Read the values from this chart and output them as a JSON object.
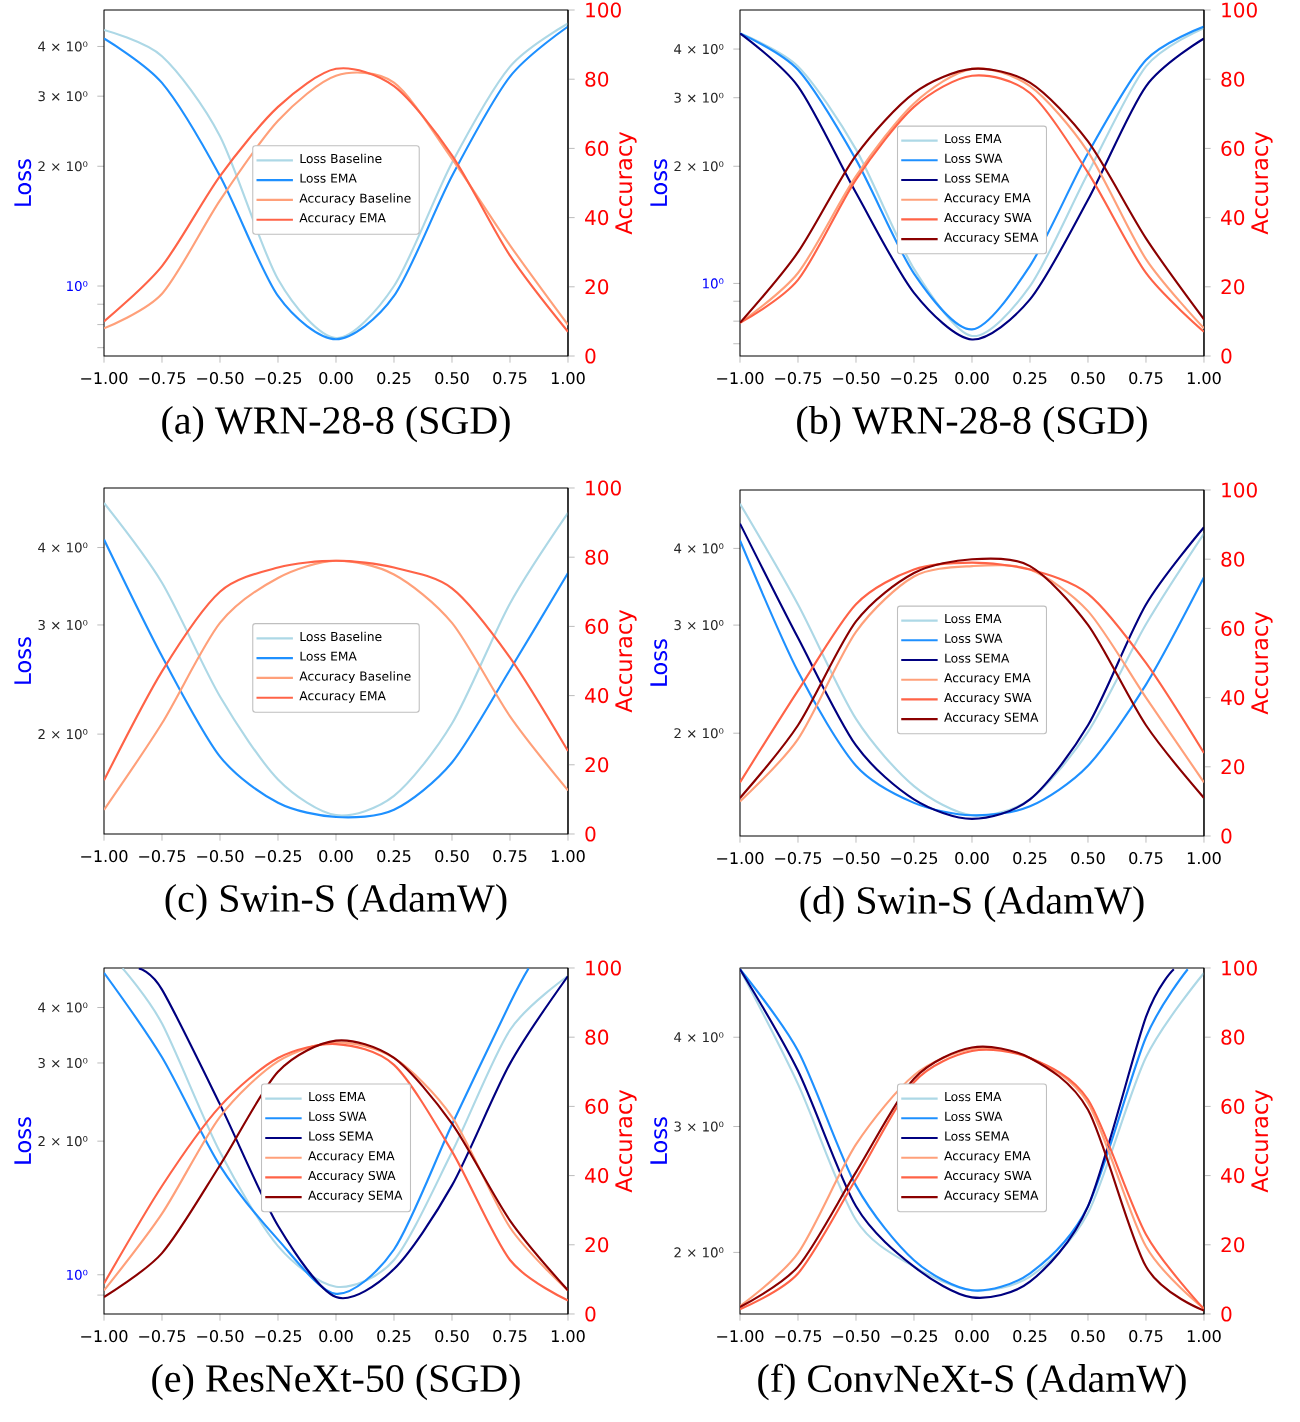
{
  "chart_data": [
    {
      "type": "line",
      "title": "(a) WRN-28-8 (SGD)",
      "ylabel": "Loss",
      "y2label": "Accuracy",
      "log": "y",
      "legend": "center",
      "x": [
        -1,
        -0.75,
        -0.5,
        -0.25,
        0,
        0.25,
        0.5,
        0.75,
        1
      ],
      "xlim": [
        -1,
        1
      ],
      "xticks": [
        {
          "value": -1,
          "label": "−1.00"
        },
        {
          "value": -0.75,
          "label": "−0.75"
        },
        {
          "value": -0.5,
          "label": "−0.50"
        },
        {
          "value": -0.25,
          "label": "−0.25"
        },
        {
          "value": 0,
          "label": "0.00"
        },
        {
          "value": 0.25,
          "label": "0.25"
        },
        {
          "value": 0.5,
          "label": "0.50"
        },
        {
          "value": 0.75,
          "label": "0.75"
        },
        {
          "value": 1,
          "label": "1.00"
        }
      ],
      "ylim": [
        0.667,
        4.94
      ],
      "yticks": [
        {
          "value": 0.7,
          "label": null
        },
        {
          "value": 0.8,
          "label": null
        },
        {
          "value": 0.9,
          "label": null
        },
        {
          "value": 1,
          "label": "10⁰"
        },
        {
          "value": 2,
          "label": "2 × 10⁰"
        },
        {
          "value": 3,
          "label": "3 × 10⁰"
        },
        {
          "value": 4,
          "label": "4 × 10⁰"
        }
      ],
      "y2lim": [
        0,
        100
      ],
      "y2ticks": [
        0,
        20,
        40,
        60,
        80,
        100
      ],
      "series": [
        {
          "name": "Loss Baseline",
          "color": "#add8e6",
          "values": [
            4.4,
            3.78,
            2.38,
            1.04,
            0.74,
            1.0,
            2.04,
            3.56,
            4.57
          ]
        },
        {
          "name": "Loss EMA",
          "color": "#1e90ff",
          "values": [
            4.19,
            3.24,
            1.89,
            0.944,
            0.735,
            0.944,
            1.89,
            3.36,
            4.49
          ]
        },
        {
          "name": "Accuracy Baseline",
          "color": "#ffa07a",
          "axis": "y2",
          "values": [
            8,
            18,
            45,
            68,
            81,
            79,
            57,
            32,
            9
          ]
        },
        {
          "name": "Accuracy EMA",
          "color": "#ff6347",
          "axis": "y2",
          "values": [
            10,
            26,
            52,
            72,
            83,
            78,
            58,
            29,
            7
          ]
        }
      ]
    },
    {
      "type": "line",
      "title": "(b) WRN-28-8 (SGD)",
      "ylabel": "Loss",
      "y2label": "Accuracy",
      "log": "y",
      "legend": "center",
      "x": [
        -1,
        -0.75,
        -0.5,
        -0.25,
        0,
        0.25,
        0.5,
        0.75,
        1
      ],
      "xlim": [
        -1,
        1
      ],
      "xticks": [
        {
          "value": -1,
          "label": "−1.00"
        },
        {
          "value": -0.75,
          "label": "−0.75"
        },
        {
          "value": -0.5,
          "label": "−0.50"
        },
        {
          "value": -0.25,
          "label": "−0.25"
        },
        {
          "value": 0,
          "label": "0.00"
        },
        {
          "value": 0.25,
          "label": "0.25"
        },
        {
          "value": 0.5,
          "label": "0.50"
        },
        {
          "value": 0.75,
          "label": "0.75"
        },
        {
          "value": 1,
          "label": "1.00"
        }
      ],
      "ylim": [
        0.651,
        5.04
      ],
      "yticks": [
        {
          "value": 0.7,
          "label": null
        },
        {
          "value": 0.8,
          "label": null
        },
        {
          "value": 0.9,
          "label": null
        },
        {
          "value": 1,
          "label": "10⁰"
        },
        {
          "value": 2,
          "label": "2 × 10⁰"
        },
        {
          "value": 3,
          "label": "3 × 10⁰"
        },
        {
          "value": 4,
          "label": "4 × 10⁰"
        }
      ],
      "y2lim": [
        0,
        100
      ],
      "y2ticks": [
        0,
        20,
        40,
        60,
        80,
        100
      ],
      "series": [
        {
          "name": "Loss EMA",
          "color": "#add8e6",
          "values": [
            4.39,
            3.61,
            2.21,
            1.09,
            0.733,
            0.984,
            1.92,
            3.61,
            4.53
          ]
        },
        {
          "name": "Loss SWA",
          "color": "#1e90ff",
          "values": [
            4.39,
            3.54,
            2.08,
            1.06,
            0.762,
            1.11,
            2.16,
            3.75,
            4.57
          ]
        },
        {
          "name": "Loss SEMA",
          "color": "#000080",
          "values": [
            4.39,
            3.21,
            1.71,
            0.946,
            0.718,
            0.91,
            1.64,
            3.21,
            4.26
          ]
        },
        {
          "name": "Accuracy EMA",
          "color": "#ffa07a",
          "axis": "y2",
          "values": [
            9.6,
            24,
            52,
            73,
            83,
            78,
            59,
            28,
            8
          ]
        },
        {
          "name": "Accuracy SWA",
          "color": "#ff6347",
          "axis": "y2",
          "values": [
            9.6,
            22,
            51,
            72,
            81,
            76,
            53,
            24,
            7
          ]
        },
        {
          "name": "Accuracy SEMA",
          "color": "#8b0000",
          "axis": "y2",
          "values": [
            9.6,
            30,
            58,
            76,
            83,
            79,
            62,
            34,
            10.6
          ]
        }
      ]
    },
    {
      "type": "line",
      "title": "(c) Swin-S (AdamW)",
      "ylabel": "Loss",
      "y2label": "Accuracy",
      "log": "y",
      "legend": "center",
      "x": [
        -1,
        -0.75,
        -0.5,
        -0.25,
        0,
        0.25,
        0.5,
        0.75,
        1
      ],
      "xlim": [
        -1,
        1
      ],
      "xticks": [
        {
          "value": -1,
          "label": "−1.00"
        },
        {
          "value": -0.75,
          "label": "−0.75"
        },
        {
          "value": -0.5,
          "label": "−0.50"
        },
        {
          "value": -0.25,
          "label": "−0.25"
        },
        {
          "value": 0,
          "label": "0.00"
        },
        {
          "value": 0.25,
          "label": "0.25"
        },
        {
          "value": 0.5,
          "label": "0.50"
        },
        {
          "value": 0.75,
          "label": "0.75"
        },
        {
          "value": 1,
          "label": "1.00"
        }
      ],
      "ylim": [
        1.38,
        4.99
      ],
      "yticks": [
        {
          "value": 2,
          "label": "2 × 10⁰"
        },
        {
          "value": 3,
          "label": "3 × 10⁰"
        },
        {
          "value": 4,
          "label": "4 × 10⁰"
        }
      ],
      "y2lim": [
        0,
        100
      ],
      "y2ticks": [
        0,
        20,
        40,
        60,
        80,
        100
      ],
      "series": [
        {
          "name": "Loss Baseline",
          "color": "#add8e6",
          "values": [
            4.72,
            3.51,
            2.3,
            1.69,
            1.48,
            1.59,
            2.08,
            3.25,
            4.55
          ]
        },
        {
          "name": "Loss EMA",
          "color": "#1e90ff",
          "values": [
            4.12,
            2.67,
            1.84,
            1.55,
            1.47,
            1.51,
            1.8,
            2.54,
            3.64
          ]
        },
        {
          "name": "Accuracy Baseline",
          "color": "#ffa07a",
          "axis": "y2",
          "values": [
            7,
            32,
            61,
            74,
            79,
            75,
            61,
            34,
            12.6
          ]
        },
        {
          "name": "Accuracy EMA",
          "color": "#ff6347",
          "axis": "y2",
          "values": [
            15.5,
            47,
            70,
            77,
            79,
            77,
            71,
            51,
            24
          ]
        }
      ]
    },
    {
      "type": "line",
      "title": "(d) Swin-S (AdamW)",
      "ylabel": "Loss",
      "y2label": "Accuracy",
      "log": "y",
      "legend": "center",
      "x": [
        -1,
        -0.75,
        -0.5,
        -0.25,
        0,
        0.25,
        0.5,
        0.75,
        1
      ],
      "xlim": [
        -1,
        1
      ],
      "xticks": [
        {
          "value": -1,
          "label": "−1.00"
        },
        {
          "value": -0.75,
          "label": "−0.75"
        },
        {
          "value": -0.5,
          "label": "−0.50"
        },
        {
          "value": -0.25,
          "label": "−0.25"
        },
        {
          "value": 0,
          "label": "0.00"
        },
        {
          "value": 0.25,
          "label": "0.25"
        },
        {
          "value": 0.5,
          "label": "0.50"
        },
        {
          "value": 0.75,
          "label": "0.75"
        },
        {
          "value": 1,
          "label": "1.00"
        }
      ],
      "ylim": [
        1.36,
        4.98
      ],
      "yticks": [
        {
          "value": 2,
          "label": "2 × 10⁰"
        },
        {
          "value": 3,
          "label": "3 × 10⁰"
        },
        {
          "value": 4,
          "label": "4 × 10⁰"
        }
      ],
      "y2lim": [
        0,
        100
      ],
      "y2ticks": [
        0,
        20,
        40,
        60,
        80,
        100
      ],
      "series": [
        {
          "name": "Loss EMA",
          "color": "#add8e6",
          "values": [
            4.73,
            3.24,
            2.11,
            1.64,
            1.47,
            1.56,
            2.01,
            3.01,
            4.23
          ]
        },
        {
          "name": "Loss SWA",
          "color": "#1e90ff",
          "values": [
            4.12,
            2.52,
            1.77,
            1.54,
            1.47,
            1.52,
            1.77,
            2.4,
            3.59
          ]
        },
        {
          "name": "Loss SEMA",
          "color": "#000080",
          "values": [
            4.39,
            2.86,
            1.91,
            1.56,
            1.45,
            1.56,
            2.06,
            3.24,
            4.33
          ]
        },
        {
          "name": "Accuracy EMA",
          "color": "#ffa07a",
          "axis": "y2",
          "values": [
            10,
            28,
            59,
            75,
            78,
            77,
            65,
            40,
            15.5
          ]
        },
        {
          "name": "Accuracy SWA",
          "color": "#ff6347",
          "axis": "y2",
          "values": [
            15.5,
            42,
            67,
            77,
            79,
            77,
            70,
            50,
            24
          ]
        },
        {
          "name": "Accuracy SEMA",
          "color": "#8b0000",
          "axis": "y2",
          "values": [
            11,
            32,
            62,
            76,
            80,
            78,
            61,
            32,
            11
          ]
        }
      ]
    },
    {
      "type": "line",
      "title": "(e) ResNeXt-50 (SGD)",
      "ylabel": "Loss",
      "y2label": "Accuracy",
      "log": "y",
      "legend": "center",
      "x": [
        -1,
        -0.75,
        -0.5,
        -0.25,
        0,
        0.25,
        0.5,
        0.75,
        1
      ],
      "xlim": [
        -1,
        1
      ],
      "xticks": [
        {
          "value": -1,
          "label": "−1.00"
        },
        {
          "value": -0.75,
          "label": "−0.75"
        },
        {
          "value": -0.5,
          "label": "−0.50"
        },
        {
          "value": -0.25,
          "label": "−0.25"
        },
        {
          "value": 0,
          "label": "0.00"
        },
        {
          "value": 0.25,
          "label": "0.25"
        },
        {
          "value": 0.5,
          "label": "0.50"
        },
        {
          "value": 0.75,
          "label": "0.75"
        },
        {
          "value": 1,
          "label": "1.00"
        }
      ],
      "ylim": [
        0.816,
        4.91
      ],
      "yticks": [
        {
          "value": 0.9,
          "label": null
        },
        {
          "value": 1,
          "label": "10⁰"
        },
        {
          "value": 2,
          "label": "2 × 10⁰"
        },
        {
          "value": 3,
          "label": "3 × 10⁰"
        },
        {
          "value": 4,
          "label": "4 × 10⁰"
        }
      ],
      "y2lim": [
        0,
        100
      ],
      "y2ticks": [
        0,
        20,
        40,
        60,
        80,
        100
      ],
      "series": [
        {
          "name": "Loss EMA",
          "color": "#add8e6",
          "x": [
            -0.92,
            -0.75,
            -0.5,
            -0.25,
            0,
            0.25,
            0.5,
            0.75,
            1
          ],
          "values": [
            4.9,
            3.68,
            1.89,
            1.16,
            0.94,
            1.08,
            1.89,
            3.56,
            4.71
          ]
        },
        {
          "name": "Loss SWA",
          "color": "#1e90ff",
          "x": [
            -1,
            -0.75,
            -0.5,
            -0.25,
            0,
            0.25,
            0.5,
            0.75,
            0.83
          ],
          "values": [
            4.79,
            3.09,
            1.76,
            1.2,
            0.906,
            1.14,
            2.18,
            4.09,
            4.9
          ]
        },
        {
          "name": "Loss SEMA",
          "color": "#000080",
          "x": [
            -0.85,
            -0.75,
            -0.5,
            -0.25,
            0,
            0.25,
            0.5,
            0.75,
            1
          ],
          "values": [
            4.9,
            4.39,
            2.42,
            1.29,
            0.891,
            1.03,
            1.59,
            2.99,
            4.71
          ]
        },
        {
          "name": "Accuracy EMA",
          "color": "#ffa07a",
          "axis": "y2",
          "values": [
            6.8,
            29,
            57,
            73,
            78.5,
            74,
            57,
            25,
            6.8
          ]
        },
        {
          "name": "Accuracy SWA",
          "color": "#ff6347",
          "axis": "y2",
          "values": [
            8.8,
            37,
            60,
            74,
            78,
            72,
            47,
            15.6,
            3.9
          ]
        },
        {
          "name": "Accuracy SEMA",
          "color": "#8b0000",
          "axis": "y2",
          "values": [
            4.9,
            17.6,
            43,
            70,
            79,
            74,
            55,
            27,
            6.8
          ]
        }
      ]
    },
    {
      "type": "line",
      "title": "(f) ConvNeXt-S (AdamW)",
      "ylabel": "Loss",
      "y2label": "Accuracy",
      "log": "y",
      "legend": "center",
      "x": [
        -1,
        -0.75,
        -0.5,
        -0.25,
        0,
        0.25,
        0.5,
        0.75,
        1
      ],
      "xlim": [
        -1,
        1
      ],
      "xticks": [
        {
          "value": -1,
          "label": "−1.00"
        },
        {
          "value": -0.75,
          "label": "−0.75"
        },
        {
          "value": -0.5,
          "label": "−0.50"
        },
        {
          "value": -0.25,
          "label": "−0.25"
        },
        {
          "value": 0,
          "label": "0.00"
        },
        {
          "value": 0.25,
          "label": "0.25"
        },
        {
          "value": 0.5,
          "label": "0.50"
        },
        {
          "value": 0.75,
          "label": "0.75"
        },
        {
          "value": 1,
          "label": "1.00"
        }
      ],
      "ylim": [
        1.64,
        5.0
      ],
      "yticks": [
        {
          "value": 2,
          "label": "2 × 10⁰"
        },
        {
          "value": 3,
          "label": "3 × 10⁰"
        },
        {
          "value": 4,
          "label": "4 × 10⁰"
        }
      ],
      "y2lim": [
        0,
        100
      ],
      "y2ticks": [
        0,
        20,
        40,
        60,
        80,
        100
      ],
      "series": [
        {
          "name": "Loss EMA",
          "color": "#add8e6",
          "values": [
            4.98,
            3.44,
            2.22,
            1.91,
            1.77,
            1.85,
            2.27,
            3.75,
            4.92
          ]
        },
        {
          "name": "Loss SWA",
          "color": "#1e90ff",
          "x": [
            -1,
            -0.75,
            -0.5,
            -0.25,
            0,
            0.25,
            0.5,
            0.75,
            0.93
          ],
          "values": [
            4.98,
            3.83,
            2.48,
            1.95,
            1.77,
            1.87,
            2.32,
            4.0,
            4.98
          ]
        },
        {
          "name": "Loss SEMA",
          "color": "#000080",
          "x": [
            -1,
            -0.75,
            -0.5,
            -0.25,
            0,
            0.25,
            0.5,
            0.75,
            0.87
          ],
          "values": [
            4.98,
            3.59,
            2.32,
            1.91,
            1.73,
            1.82,
            2.32,
            4.27,
            4.98
          ]
        },
        {
          "name": "Accuracy EMA",
          "color": "#ffa07a",
          "axis": "y2",
          "values": [
            2.3,
            17.6,
            49,
            69,
            76.6,
            74,
            61,
            19.5,
            1.6
          ]
        },
        {
          "name": "Accuracy SWA",
          "color": "#ff6347",
          "axis": "y2",
          "values": [
            1.4,
            11.7,
            39,
            67,
            76,
            74,
            62,
            23,
            1.4
          ]
        },
        {
          "name": "Accuracy SEMA",
          "color": "#8b0000",
          "axis": "y2",
          "values": [
            2,
            13.7,
            41,
            68,
            77,
            74,
            59,
            13.7,
            1
          ]
        }
      ]
    }
  ]
}
